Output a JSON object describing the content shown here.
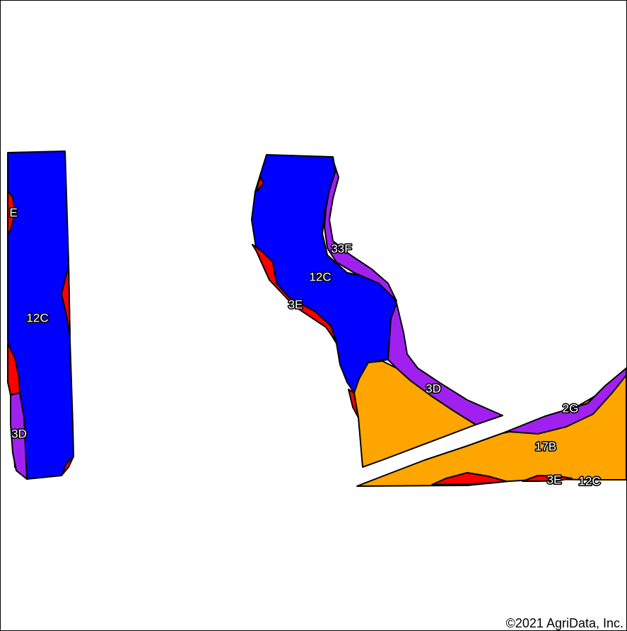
{
  "map": {
    "colors": {
      "12C": "#0000ff",
      "3E": "#ff0000",
      "3D": "#a020f0",
      "33F": "#a020f0",
      "2G": "#a020f0",
      "17B": "#ffa500"
    },
    "labels": {
      "left_e": "E",
      "left_12c": "12C",
      "left_3d": "3D",
      "mid_33f": "33F",
      "mid_12c": "12C",
      "mid_3e": "3E",
      "mid_3d": "3D",
      "right_2g": "2G",
      "right_17b": "17B",
      "right_3e": "3E",
      "right_12c": "12C"
    },
    "copyright": "©2021 AgriData, Inc."
  }
}
